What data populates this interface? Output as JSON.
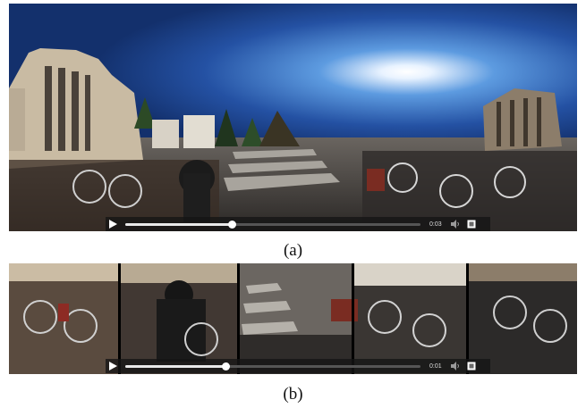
{
  "panel_a": {
    "player": {
      "progress": 0.36,
      "time": "0:03",
      "play_icon": "play-icon",
      "volume_icon": "speaker-icon",
      "fullscreen_icon": "fullscreen-icon"
    },
    "caption": "(a)"
  },
  "panel_b": {
    "player": {
      "progress": 0.34,
      "time": "0:01",
      "play_icon": "play-icon",
      "volume_icon": "speaker-icon",
      "fullscreen_icon": "fullscreen-icon"
    },
    "caption": "(b)"
  },
  "colors": {
    "sky_top": "#14306e",
    "sky_mid": "#2e5fb6",
    "sky_glow": "#ffffff",
    "ground": "#3d3a37",
    "building": "#cfc1aa"
  }
}
